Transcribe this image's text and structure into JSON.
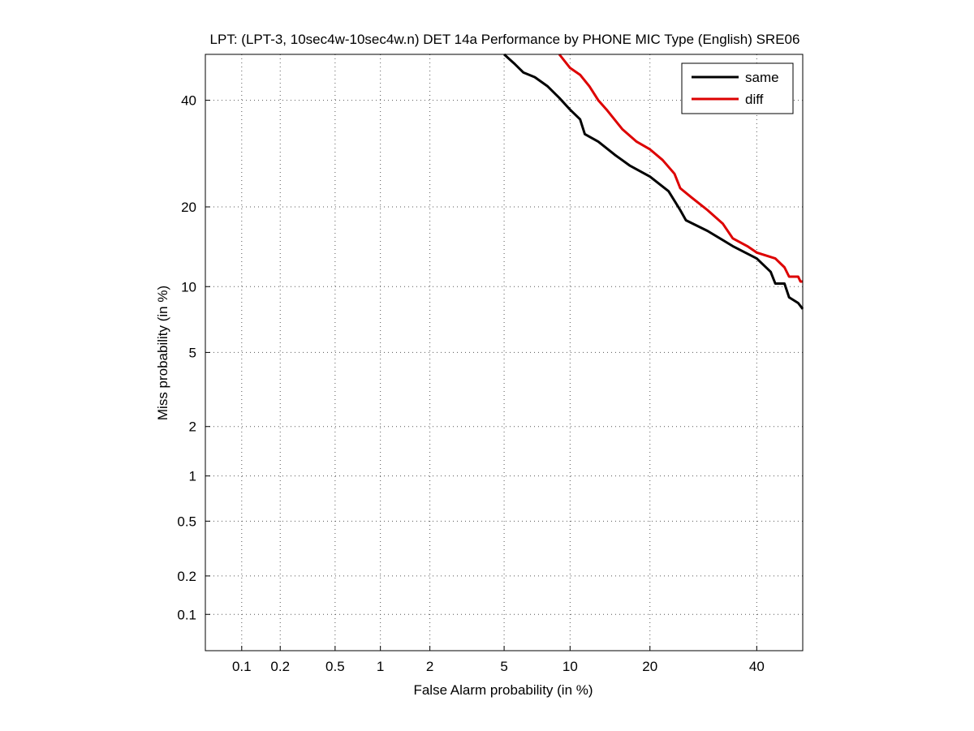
{
  "chart_data": {
    "type": "line",
    "title": "LPT: (LPT-3, 10sec4w-10sec4w.n) DET 14a Performance by PHONE MIC Type (English) SRE06",
    "xlabel": "False Alarm probability (in %)",
    "ylabel": "Miss probability (in %)",
    "scale": "normal-deviate (probit)",
    "xlim": [
      0.05,
      50
    ],
    "ylim": [
      0.05,
      50
    ],
    "xticks": [
      {
        "value": 0.1,
        "label": "0.1"
      },
      {
        "value": 0.2,
        "label": "0.2"
      },
      {
        "value": 0.5,
        "label": "0.5"
      },
      {
        "value": 1,
        "label": "1"
      },
      {
        "value": 2,
        "label": "2"
      },
      {
        "value": 5,
        "label": "5"
      },
      {
        "value": 10,
        "label": "10"
      },
      {
        "value": 20,
        "label": "20"
      },
      {
        "value": 40,
        "label": "40"
      }
    ],
    "yticks": [
      {
        "value": 0.1,
        "label": "0.1"
      },
      {
        "value": 0.2,
        "label": "0.2"
      },
      {
        "value": 0.5,
        "label": "0.5"
      },
      {
        "value": 1,
        "label": "1"
      },
      {
        "value": 2,
        "label": "2"
      },
      {
        "value": 5,
        "label": "5"
      },
      {
        "value": 10,
        "label": "10"
      },
      {
        "value": 20,
        "label": "20"
      },
      {
        "value": 40,
        "label": "40"
      }
    ],
    "grid": true,
    "legend_position": "top-right",
    "series": [
      {
        "name": "same",
        "color": "#000000",
        "points": [
          [
            5.0,
            50.0
          ],
          [
            5.6,
            48.0
          ],
          [
            6.2,
            46.0
          ],
          [
            7.0,
            45.0
          ],
          [
            8.0,
            43.0
          ],
          [
            9.0,
            40.5
          ],
          [
            10.0,
            38.0
          ],
          [
            11.0,
            36.0
          ],
          [
            11.5,
            33.0
          ],
          [
            13.0,
            31.5
          ],
          [
            15.0,
            29.0
          ],
          [
            17.0,
            27.0
          ],
          [
            20.0,
            25.0
          ],
          [
            23.0,
            22.5
          ],
          [
            25.0,
            19.5
          ],
          [
            26.0,
            18.0
          ],
          [
            30.0,
            16.5
          ],
          [
            35.0,
            14.5
          ],
          [
            40.0,
            13.0
          ],
          [
            43.0,
            11.5
          ],
          [
            44.0,
            10.3
          ],
          [
            46.0,
            10.3
          ],
          [
            47.0,
            9.0
          ],
          [
            49.0,
            8.5
          ],
          [
            50.0,
            8.0
          ]
        ]
      },
      {
        "name": "diff",
        "color": "#dd0000",
        "points": [
          [
            9.0,
            50.0
          ],
          [
            10.0,
            47.0
          ],
          [
            11.0,
            45.5
          ],
          [
            12.0,
            43.0
          ],
          [
            13.0,
            40.0
          ],
          [
            14.0,
            38.0
          ],
          [
            16.0,
            34.0
          ],
          [
            18.0,
            31.5
          ],
          [
            20.0,
            30.0
          ],
          [
            22.0,
            28.0
          ],
          [
            24.0,
            25.5
          ],
          [
            25.0,
            23.0
          ],
          [
            27.0,
            21.5
          ],
          [
            30.0,
            19.5
          ],
          [
            33.0,
            17.5
          ],
          [
            35.0,
            15.5
          ],
          [
            38.0,
            14.5
          ],
          [
            40.0,
            13.7
          ],
          [
            44.0,
            13.0
          ],
          [
            46.0,
            12.0
          ],
          [
            47.0,
            11.0
          ],
          [
            49.0,
            11.0
          ],
          [
            49.5,
            10.5
          ],
          [
            50.0,
            10.5
          ]
        ]
      }
    ]
  }
}
